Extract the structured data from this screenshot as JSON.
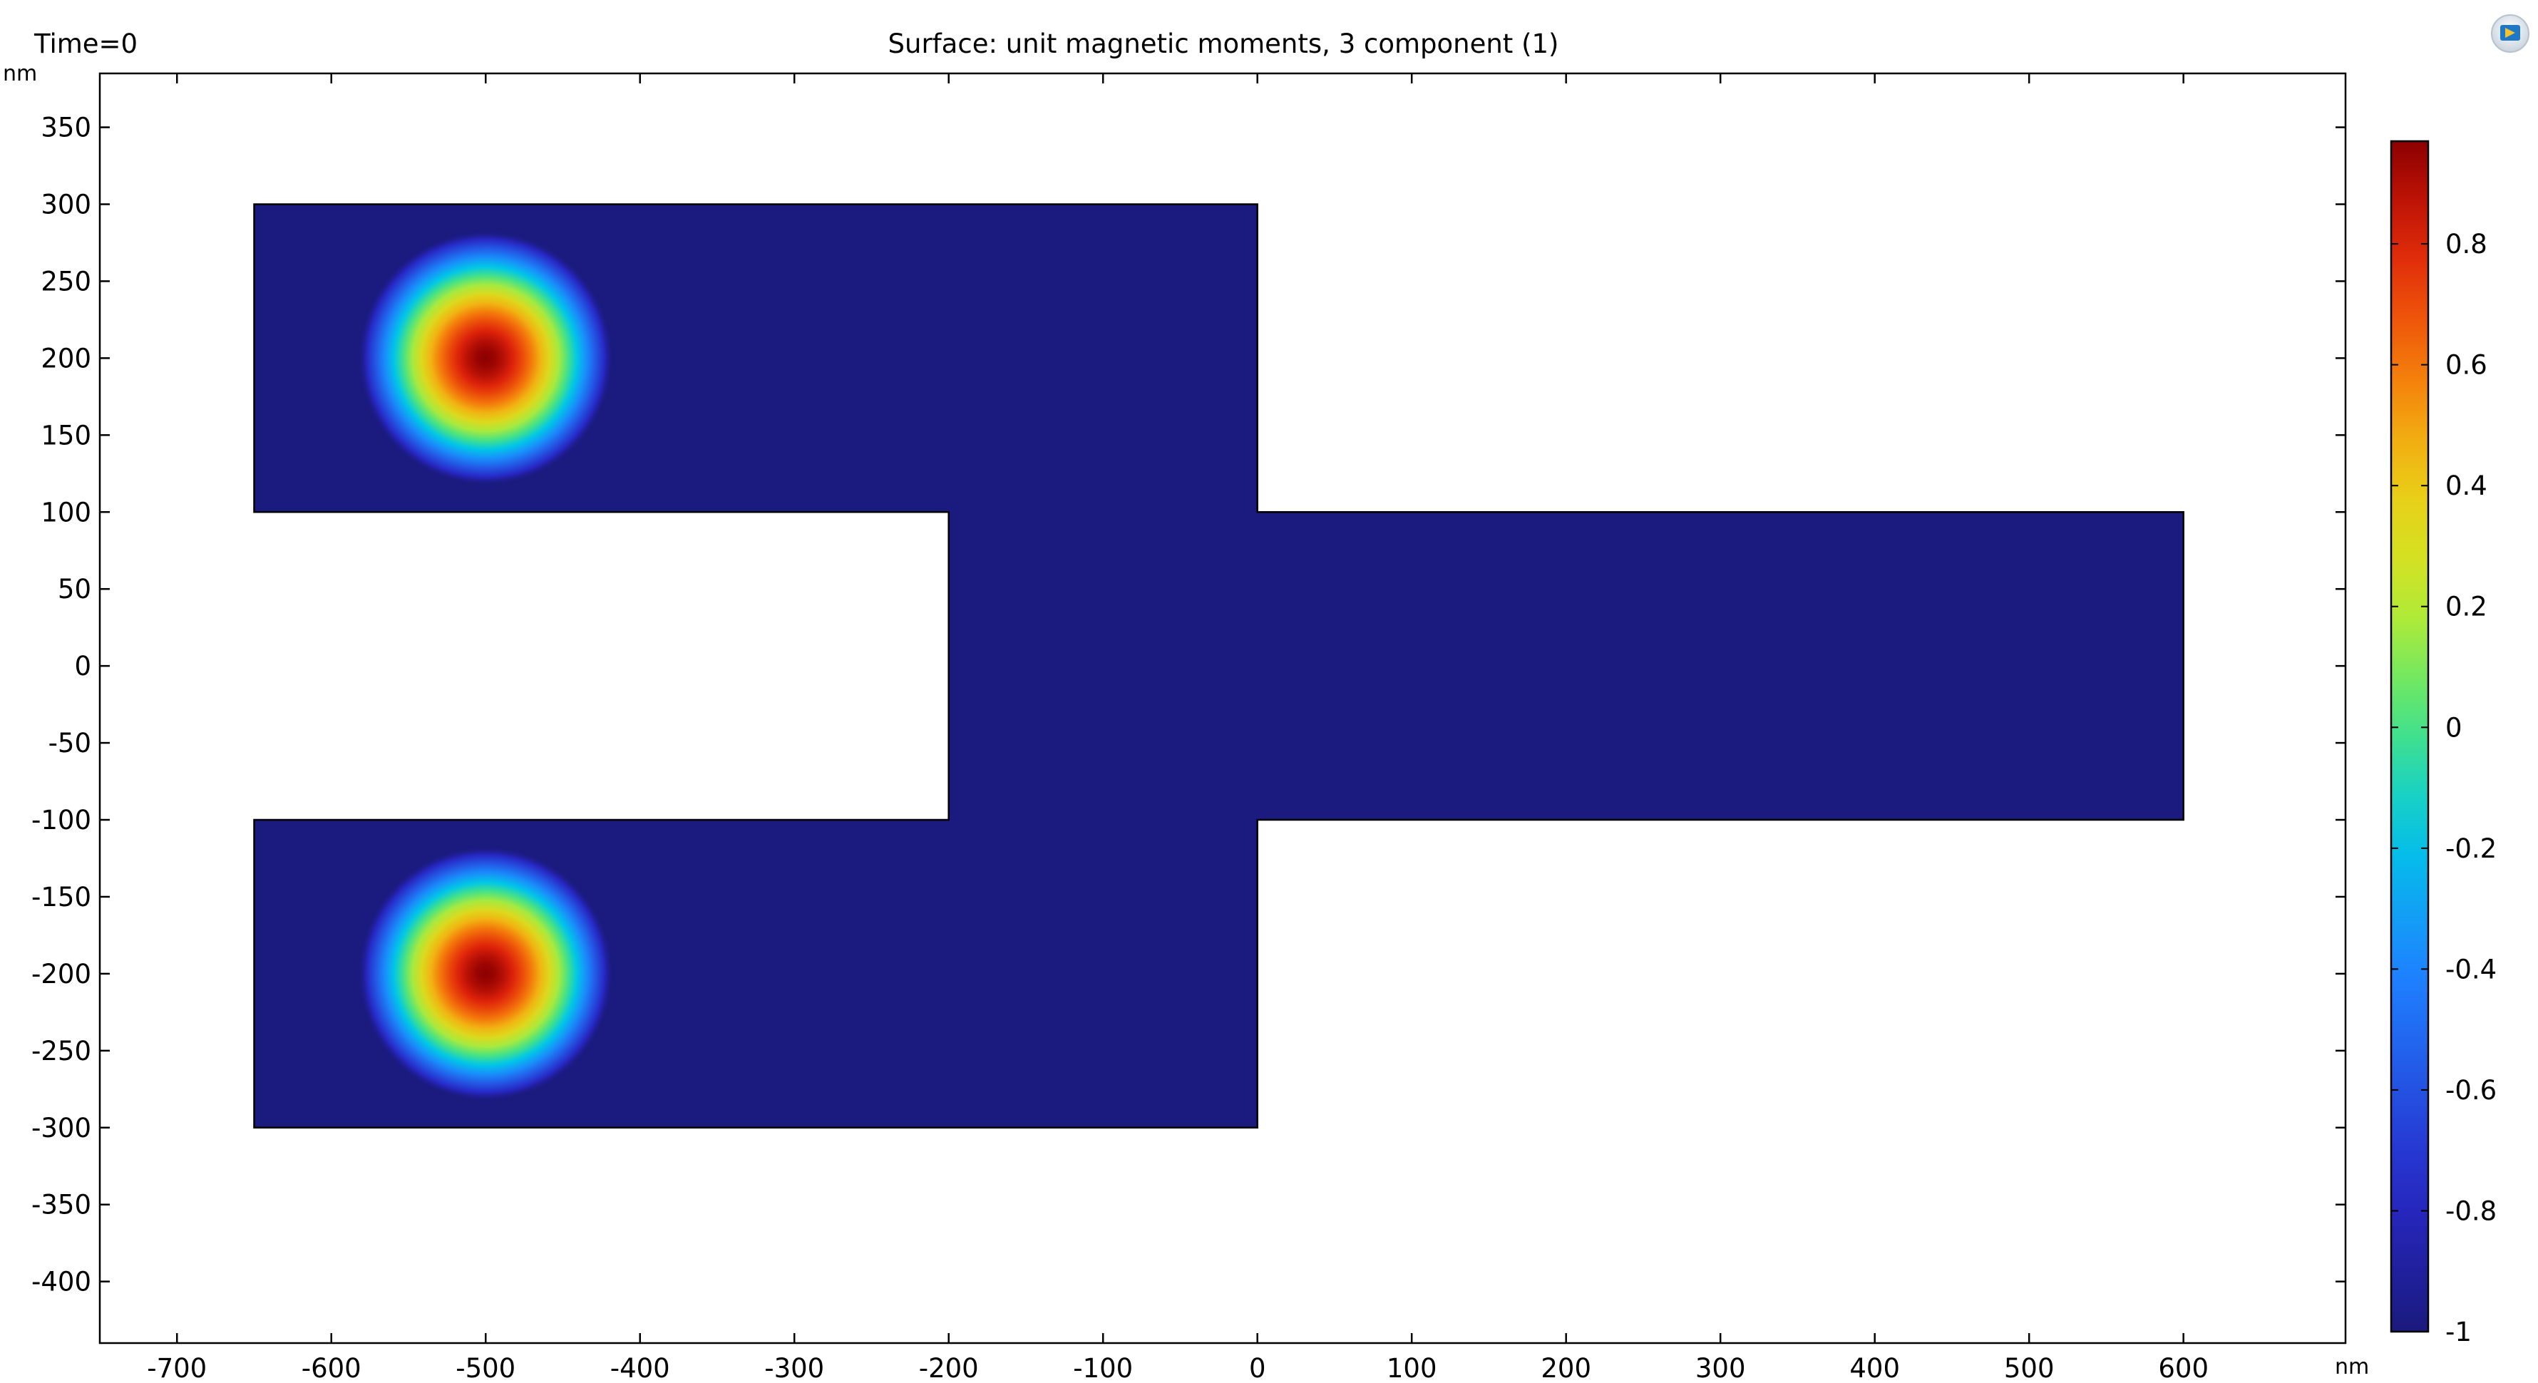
{
  "header": {
    "time_label": "Time=0",
    "plot_title": "Surface: unit magnetic moments, 3 component (1)",
    "y_unit": "nm",
    "x_unit": "nm"
  },
  "colors": {
    "background": "#ffffff",
    "domain_fill": "#1b1a7e",
    "outline": "#000000"
  },
  "icons": {
    "logo": "comsol-logo-icon"
  },
  "chart_data": {
    "type": "heatmap",
    "title": "Surface: unit magnetic moments, 3 component (1)",
    "xlabel": "nm",
    "ylabel": "nm",
    "xlim": [
      -750,
      705
    ],
    "ylim": [
      -440,
      385
    ],
    "x_ticks": [
      -700,
      -600,
      -500,
      -400,
      -300,
      -200,
      -100,
      0,
      100,
      200,
      300,
      400,
      500,
      600
    ],
    "y_ticks": [
      350,
      300,
      250,
      200,
      150,
      100,
      50,
      0,
      -50,
      -100,
      -150,
      -200,
      -250,
      -300,
      -350,
      -400
    ],
    "y_tick_labels": [
      "350",
      "300",
      "250",
      "200",
      "150",
      "100",
      "50",
      "0",
      "-50",
      "-100",
      "-150",
      "-200",
      "-250",
      "-300",
      "-350",
      "-400"
    ],
    "x_tick_labels": [
      "-700",
      "-600",
      "-500",
      "-400",
      "-300",
      "-200",
      "-100",
      "0",
      "100",
      "200",
      "300",
      "400",
      "500",
      "600"
    ],
    "domain_polygon": [
      [
        -650,
        300
      ],
      [
        0,
        300
      ],
      [
        0,
        100
      ],
      [
        600,
        100
      ],
      [
        600,
        -100
      ],
      [
        0,
        -100
      ],
      [
        0,
        -300
      ],
      [
        -650,
        -300
      ],
      [
        -650,
        -100
      ],
      [
        -200,
        -100
      ],
      [
        -200,
        100
      ],
      [
        -650,
        100
      ]
    ],
    "background_value": -1,
    "hotspots": [
      {
        "name": "skyrmion-top",
        "x": -500,
        "y": 200,
        "peak": 0.97,
        "radius": 28,
        "falloff": 55
      },
      {
        "name": "skyrmion-bottom",
        "x": -500,
        "y": -200,
        "peak": 0.97,
        "radius": 28,
        "falloff": 55
      }
    ],
    "colorbar": {
      "min": -1,
      "max": 0.97,
      "ticks": [
        0.8,
        0.6,
        0.4,
        0.2,
        0,
        -0.2,
        -0.4,
        -0.6,
        -0.8,
        -1
      ],
      "tick_labels": [
        "0.8",
        "0.6",
        "0.4",
        "0.2",
        "0",
        "-0.2",
        "-0.4",
        "-0.6",
        "-0.8",
        "-1"
      ],
      "colormap": "RainbowLight"
    },
    "grid": false
  }
}
